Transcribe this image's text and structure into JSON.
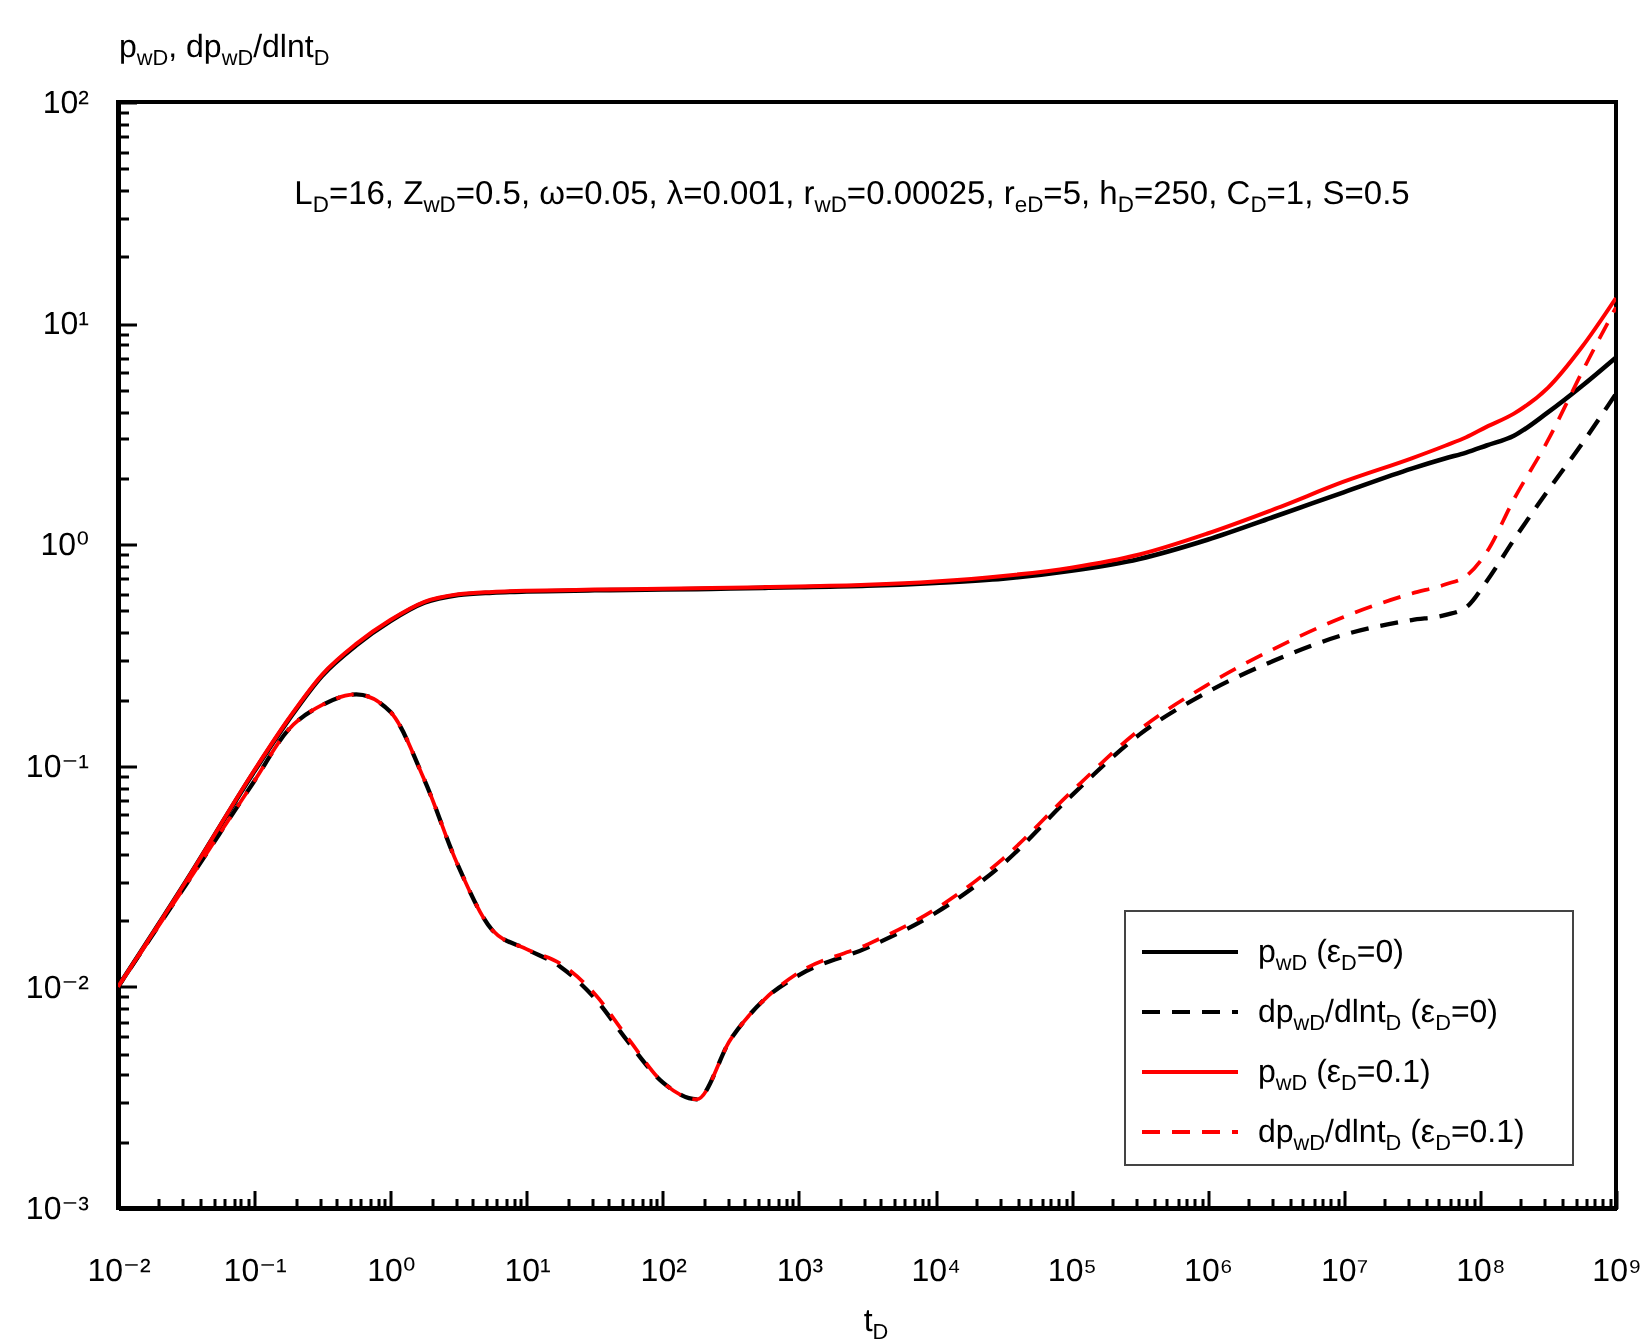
{
  "chart_data": {
    "type": "line",
    "log": "xy",
    "legend": "bottom right",
    "xlabel": "t$_{D}$",
    "ylabel": "p$_{wD}$, dp$_{wD}$/dlnt$_{D}$",
    "annotations": [
      "L$_{D}$=16, Z$_{wD}$=0.5, ω=0.05, λ=0.001, r$_{wD}$=0.00025, r$_{eD}$=5, h$_{D}$=250, C$_{D}$=1, S=0.5"
    ],
    "xlim": [
      0.01,
      1000000000
    ],
    "ylim": [
      0.001,
      100
    ],
    "xticks": [
      {
        "value": 0.01,
        "label": "10⁻²"
      },
      {
        "value": 0.02,
        "label": null
      },
      {
        "value": 0.03,
        "label": null
      },
      {
        "value": 0.04,
        "label": null
      },
      {
        "value": 0.05,
        "label": null
      },
      {
        "value": 0.06,
        "label": null
      },
      {
        "value": 0.07,
        "label": null
      },
      {
        "value": 0.08,
        "label": null
      },
      {
        "value": 0.09,
        "label": null
      },
      {
        "value": 0.1,
        "label": "10⁻¹"
      },
      {
        "value": 0.2,
        "label": null
      },
      {
        "value": 0.3,
        "label": null
      },
      {
        "value": 0.4,
        "label": null
      },
      {
        "value": 0.5,
        "label": null
      },
      {
        "value": 0.6,
        "label": null
      },
      {
        "value": 0.7,
        "label": null
      },
      {
        "value": 0.8,
        "label": null
      },
      {
        "value": 0.9,
        "label": null
      },
      {
        "value": 1,
        "label": "10⁰"
      },
      {
        "value": 2,
        "label": null
      },
      {
        "value": 3,
        "label": null
      },
      {
        "value": 4,
        "label": null
      },
      {
        "value": 5,
        "label": null
      },
      {
        "value": 6,
        "label": null
      },
      {
        "value": 7,
        "label": null
      },
      {
        "value": 8,
        "label": null
      },
      {
        "value": 9,
        "label": null
      },
      {
        "value": 10,
        "label": "10¹"
      },
      {
        "value": 20,
        "label": null
      },
      {
        "value": 30,
        "label": null
      },
      {
        "value": 40,
        "label": null
      },
      {
        "value": 50,
        "label": null
      },
      {
        "value": 60,
        "label": null
      },
      {
        "value": 70,
        "label": null
      },
      {
        "value": 80,
        "label": null
      },
      {
        "value": 90,
        "label": null
      },
      {
        "value": 100,
        "label": "10²"
      },
      {
        "value": 200,
        "label": null
      },
      {
        "value": 300,
        "label": null
      },
      {
        "value": 400,
        "label": null
      },
      {
        "value": 500,
        "label": null
      },
      {
        "value": 600,
        "label": null
      },
      {
        "value": 700,
        "label": null
      },
      {
        "value": 800,
        "label": null
      },
      {
        "value": 900,
        "label": null
      },
      {
        "value": 1000,
        "label": "10³"
      },
      {
        "value": 2000,
        "label": null
      },
      {
        "value": 3000,
        "label": null
      },
      {
        "value": 4000,
        "label": null
      },
      {
        "value": 5000,
        "label": null
      },
      {
        "value": 6000,
        "label": null
      },
      {
        "value": 7000,
        "label": null
      },
      {
        "value": 8000,
        "label": null
      },
      {
        "value": 9000,
        "label": null
      },
      {
        "value": 10000,
        "label": "10⁴"
      },
      {
        "value": 20000,
        "label": null
      },
      {
        "value": 30000,
        "label": null
      },
      {
        "value": 40000,
        "label": null
      },
      {
        "value": 50000,
        "label": null
      },
      {
        "value": 60000,
        "label": null
      },
      {
        "value": 70000,
        "label": null
      },
      {
        "value": 80000,
        "label": null
      },
      {
        "value": 90000,
        "label": null
      },
      {
        "value": 100000,
        "label": "10⁵"
      },
      {
        "value": 200000,
        "label": null
      },
      {
        "value": 300000,
        "label": null
      },
      {
        "value": 400000,
        "label": null
      },
      {
        "value": 500000,
        "label": null
      },
      {
        "value": 600000,
        "label": null
      },
      {
        "value": 700000,
        "label": null
      },
      {
        "value": 800000,
        "label": null
      },
      {
        "value": 900000,
        "label": null
      },
      {
        "value": 1000000,
        "label": "10⁶"
      },
      {
        "value": 2000000,
        "label": null
      },
      {
        "value": 3000000,
        "label": null
      },
      {
        "value": 4000000,
        "label": null
      },
      {
        "value": 5000000,
        "label": null
      },
      {
        "value": 6000000,
        "label": null
      },
      {
        "value": 7000000,
        "label": null
      },
      {
        "value": 8000000,
        "label": null
      },
      {
        "value": 9000000,
        "label": null
      },
      {
        "value": 10000000,
        "label": "10⁷"
      },
      {
        "value": 20000000,
        "label": null
      },
      {
        "value": 30000000,
        "label": null
      },
      {
        "value": 40000000,
        "label": null
      },
      {
        "value": 50000000,
        "label": null
      },
      {
        "value": 60000000,
        "label": null
      },
      {
        "value": 70000000,
        "label": null
      },
      {
        "value": 80000000,
        "label": null
      },
      {
        "value": 90000000,
        "label": null
      },
      {
        "value": 100000000,
        "label": "10⁸"
      },
      {
        "value": 200000000,
        "label": null
      },
      {
        "value": 300000000,
        "label": null
      },
      {
        "value": 400000000,
        "label": null
      },
      {
        "value": 500000000,
        "label": null
      },
      {
        "value": 600000000,
        "label": null
      },
      {
        "value": 700000000,
        "label": null
      },
      {
        "value": 800000000,
        "label": null
      },
      {
        "value": 900000000,
        "label": null
      },
      {
        "value": 1000000000,
        "label": "10⁹"
      }
    ],
    "yticks": [
      {
        "value": 0.001,
        "label": "10⁻³"
      },
      {
        "value": 0.002,
        "label": null
      },
      {
        "value": 0.003,
        "label": null
      },
      {
        "value": 0.004,
        "label": null
      },
      {
        "value": 0.005,
        "label": null
      },
      {
        "value": 0.006,
        "label": null
      },
      {
        "value": 0.007,
        "label": null
      },
      {
        "value": 0.008,
        "label": null
      },
      {
        "value": 0.009,
        "label": null
      },
      {
        "value": 0.01,
        "label": "10⁻²"
      },
      {
        "value": 0.02,
        "label": null
      },
      {
        "value": 0.03,
        "label": null
      },
      {
        "value": 0.04,
        "label": null
      },
      {
        "value": 0.05,
        "label": null
      },
      {
        "value": 0.06,
        "label": null
      },
      {
        "value": 0.07,
        "label": null
      },
      {
        "value": 0.08,
        "label": null
      },
      {
        "value": 0.09,
        "label": null
      },
      {
        "value": 0.1,
        "label": "10⁻¹"
      },
      {
        "value": 0.2,
        "label": null
      },
      {
        "value": 0.3,
        "label": null
      },
      {
        "value": 0.4,
        "label": null
      },
      {
        "value": 0.5,
        "label": null
      },
      {
        "value": 0.6,
        "label": null
      },
      {
        "value": 0.7,
        "label": null
      },
      {
        "value": 0.8,
        "label": null
      },
      {
        "value": 0.9,
        "label": null
      },
      {
        "value": 1,
        "label": "10⁰"
      },
      {
        "value": 2,
        "label": null
      },
      {
        "value": 3,
        "label": null
      },
      {
        "value": 4,
        "label": null
      },
      {
        "value": 5,
        "label": null
      },
      {
        "value": 6,
        "label": null
      },
      {
        "value": 7,
        "label": null
      },
      {
        "value": 8,
        "label": null
      },
      {
        "value": 9,
        "label": null
      },
      {
        "value": 10,
        "label": "10¹"
      },
      {
        "value": 20,
        "label": null
      },
      {
        "value": 30,
        "label": null
      },
      {
        "value": 40,
        "label": null
      },
      {
        "value": 50,
        "label": null
      },
      {
        "value": 60,
        "label": null
      },
      {
        "value": 70,
        "label": null
      },
      {
        "value": 80,
        "label": null
      },
      {
        "value": 90,
        "label": null
      },
      {
        "value": 100,
        "label": "10²"
      }
    ],
    "x": [
      0.01,
      0.0316,
      0.1,
      0.178,
      0.316,
      0.562,
      1,
      1.78,
      3.16,
      5.62,
      10,
      17.8,
      31.6,
      56.2,
      100,
      178,
      316,
      562,
      1000,
      3160,
      10000,
      31600,
      100000,
      316000,
      1000000,
      3160000,
      10000000,
      31600000,
      56200000,
      79400000,
      112000000,
      178000000,
      316000000,
      562000000,
      1000000000
    ],
    "series": [
      {
        "name": "p$_{wD}$ (ε$_{D}$=0)",
        "color": "#000000",
        "line_style": "solid",
        "values": [
          0.01,
          0.03,
          0.094,
          0.16,
          0.255,
          0.35,
          0.45,
          0.545,
          0.59,
          0.605,
          0.612,
          0.616,
          0.62,
          0.622,
          0.625,
          0.628,
          0.632,
          0.636,
          0.64,
          0.65,
          0.67,
          0.7,
          0.76,
          0.86,
          1.05,
          1.34,
          1.72,
          2.2,
          2.45,
          2.6,
          2.8,
          3.1,
          3.95,
          5.2,
          7.0
        ]
      },
      {
        "name": "dp$_{wD}$/dlnt$_{D}$ (ε$_{D}$=0)",
        "color": "#000000",
        "line_style": "dashed",
        "values": [
          0.01,
          0.029,
          0.085,
          0.145,
          0.188,
          0.21,
          0.175,
          0.086,
          0.035,
          0.018,
          0.0148,
          0.0123,
          0.0089,
          0.0056,
          0.0037,
          0.0031,
          0.0058,
          0.0088,
          0.0113,
          0.015,
          0.0215,
          0.036,
          0.073,
          0.138,
          0.215,
          0.3,
          0.39,
          0.455,
          0.48,
          0.52,
          0.68,
          1.05,
          1.75,
          2.85,
          4.8
        ]
      },
      {
        "name": "p$_{wD}$ (ε$_{D}$=0.1)",
        "color": "#ff0000",
        "line_style": "solid",
        "values": [
          0.01,
          0.03,
          0.095,
          0.162,
          0.258,
          0.355,
          0.455,
          0.55,
          0.595,
          0.61,
          0.617,
          0.62,
          0.625,
          0.627,
          0.63,
          0.633,
          0.637,
          0.641,
          0.645,
          0.657,
          0.68,
          0.72,
          0.785,
          0.9,
          1.12,
          1.45,
          1.92,
          2.45,
          2.8,
          3.05,
          3.4,
          3.9,
          5.1,
          7.8,
          13.0
        ]
      },
      {
        "name": "dp$_{wD}$/dlnt$_{D}$ (ε$_{D}$=0.1)",
        "color": "#ff0000",
        "line_style": "dashed",
        "values": [
          0.01,
          0.029,
          0.085,
          0.145,
          0.188,
          0.21,
          0.175,
          0.086,
          0.035,
          0.018,
          0.0148,
          0.0127,
          0.0093,
          0.0058,
          0.0037,
          0.0031,
          0.0058,
          0.0088,
          0.0116,
          0.0155,
          0.0224,
          0.038,
          0.076,
          0.145,
          0.232,
          0.34,
          0.47,
          0.6,
          0.66,
          0.72,
          0.92,
          1.6,
          2.95,
          6.0,
          11.8
        ]
      }
    ]
  }
}
